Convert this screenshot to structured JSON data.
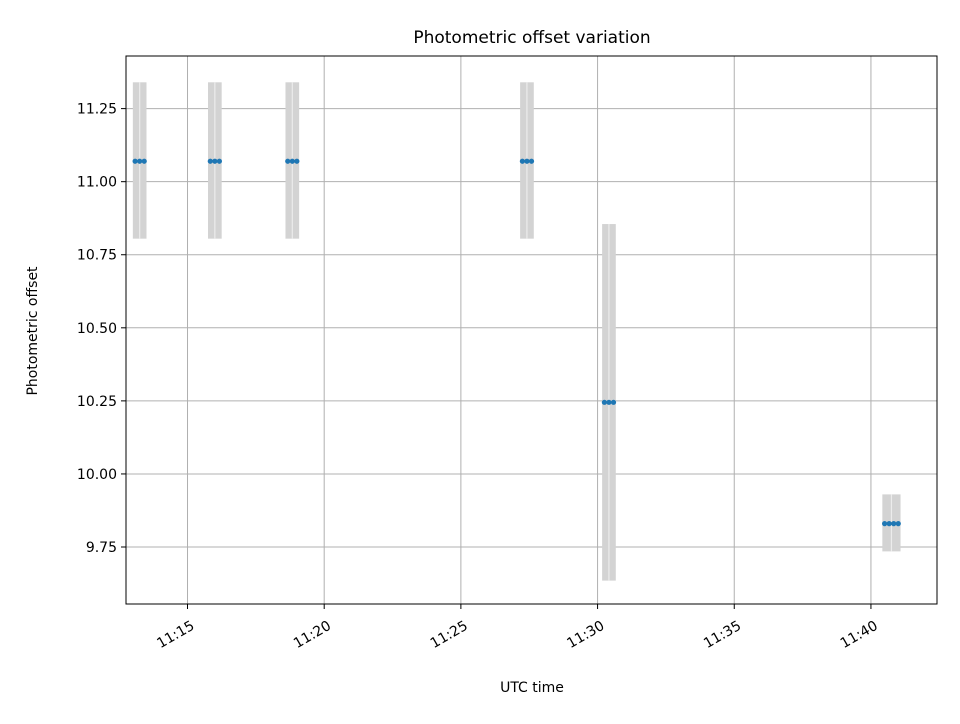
{
  "chart_data": {
    "type": "scatter",
    "title": "Photometric offset variation",
    "xlabel": "UTC time",
    "ylabel": "Photometric offset",
    "x_ticks": [
      "11:15",
      "11:20",
      "11:25",
      "11:30",
      "11:35",
      "11:40"
    ],
    "y_ticks": [
      "9.75",
      "10.00",
      "10.25",
      "10.50",
      "10.75",
      "11.00",
      "11.25"
    ],
    "xlim": [
      "11:12:45",
      "11:42:25"
    ],
    "ylim": [
      9.555,
      11.43
    ],
    "grid": true,
    "series": [
      {
        "points": [
          {
            "x": "11:13:05",
            "y": 11.07
          },
          {
            "x": "11:13:15",
            "y": 11.07
          },
          {
            "x": "11:13:25",
            "y": 11.07
          },
          {
            "x": "11:15:50",
            "y": 11.07
          },
          {
            "x": "11:16:00",
            "y": 11.07
          },
          {
            "x": "11:16:10",
            "y": 11.07
          },
          {
            "x": "11:18:40",
            "y": 11.07
          },
          {
            "x": "11:18:50",
            "y": 11.07
          },
          {
            "x": "11:19:00",
            "y": 11.07
          },
          {
            "x": "11:27:15",
            "y": 11.07
          },
          {
            "x": "11:27:25",
            "y": 11.07
          },
          {
            "x": "11:27:35",
            "y": 11.07
          },
          {
            "x": "11:30:15",
            "y": 10.245
          },
          {
            "x": "11:30:25",
            "y": 10.245
          },
          {
            "x": "11:30:35",
            "y": 10.245
          },
          {
            "x": "11:40:30",
            "y": 9.83
          },
          {
            "x": "11:40:40",
            "y": 9.83
          },
          {
            "x": "11:40:50",
            "y": 9.83
          },
          {
            "x": "11:41:00",
            "y": 9.83
          }
        ]
      }
    ],
    "error_bands": [
      {
        "x_start": "11:13:00",
        "x_end": "11:13:30",
        "y_low": 10.805,
        "y_high": 11.34
      },
      {
        "x_start": "11:15:45",
        "x_end": "11:16:15",
        "y_low": 10.805,
        "y_high": 11.34
      },
      {
        "x_start": "11:18:35",
        "x_end": "11:19:05",
        "y_low": 10.805,
        "y_high": 11.34
      },
      {
        "x_start": "11:27:10",
        "x_end": "11:27:40",
        "y_low": 10.805,
        "y_high": 11.34
      },
      {
        "x_start": "11:30:10",
        "x_end": "11:30:40",
        "y_low": 9.635,
        "y_high": 10.855
      },
      {
        "x_start": "11:40:25",
        "x_end": "11:41:05",
        "y_low": 9.735,
        "y_high": 9.93
      }
    ],
    "colors": {
      "points": "#1f77b4",
      "error_bands": "#d3d3d3",
      "grid": "#b0b0b0",
      "axes": "#000000"
    }
  }
}
